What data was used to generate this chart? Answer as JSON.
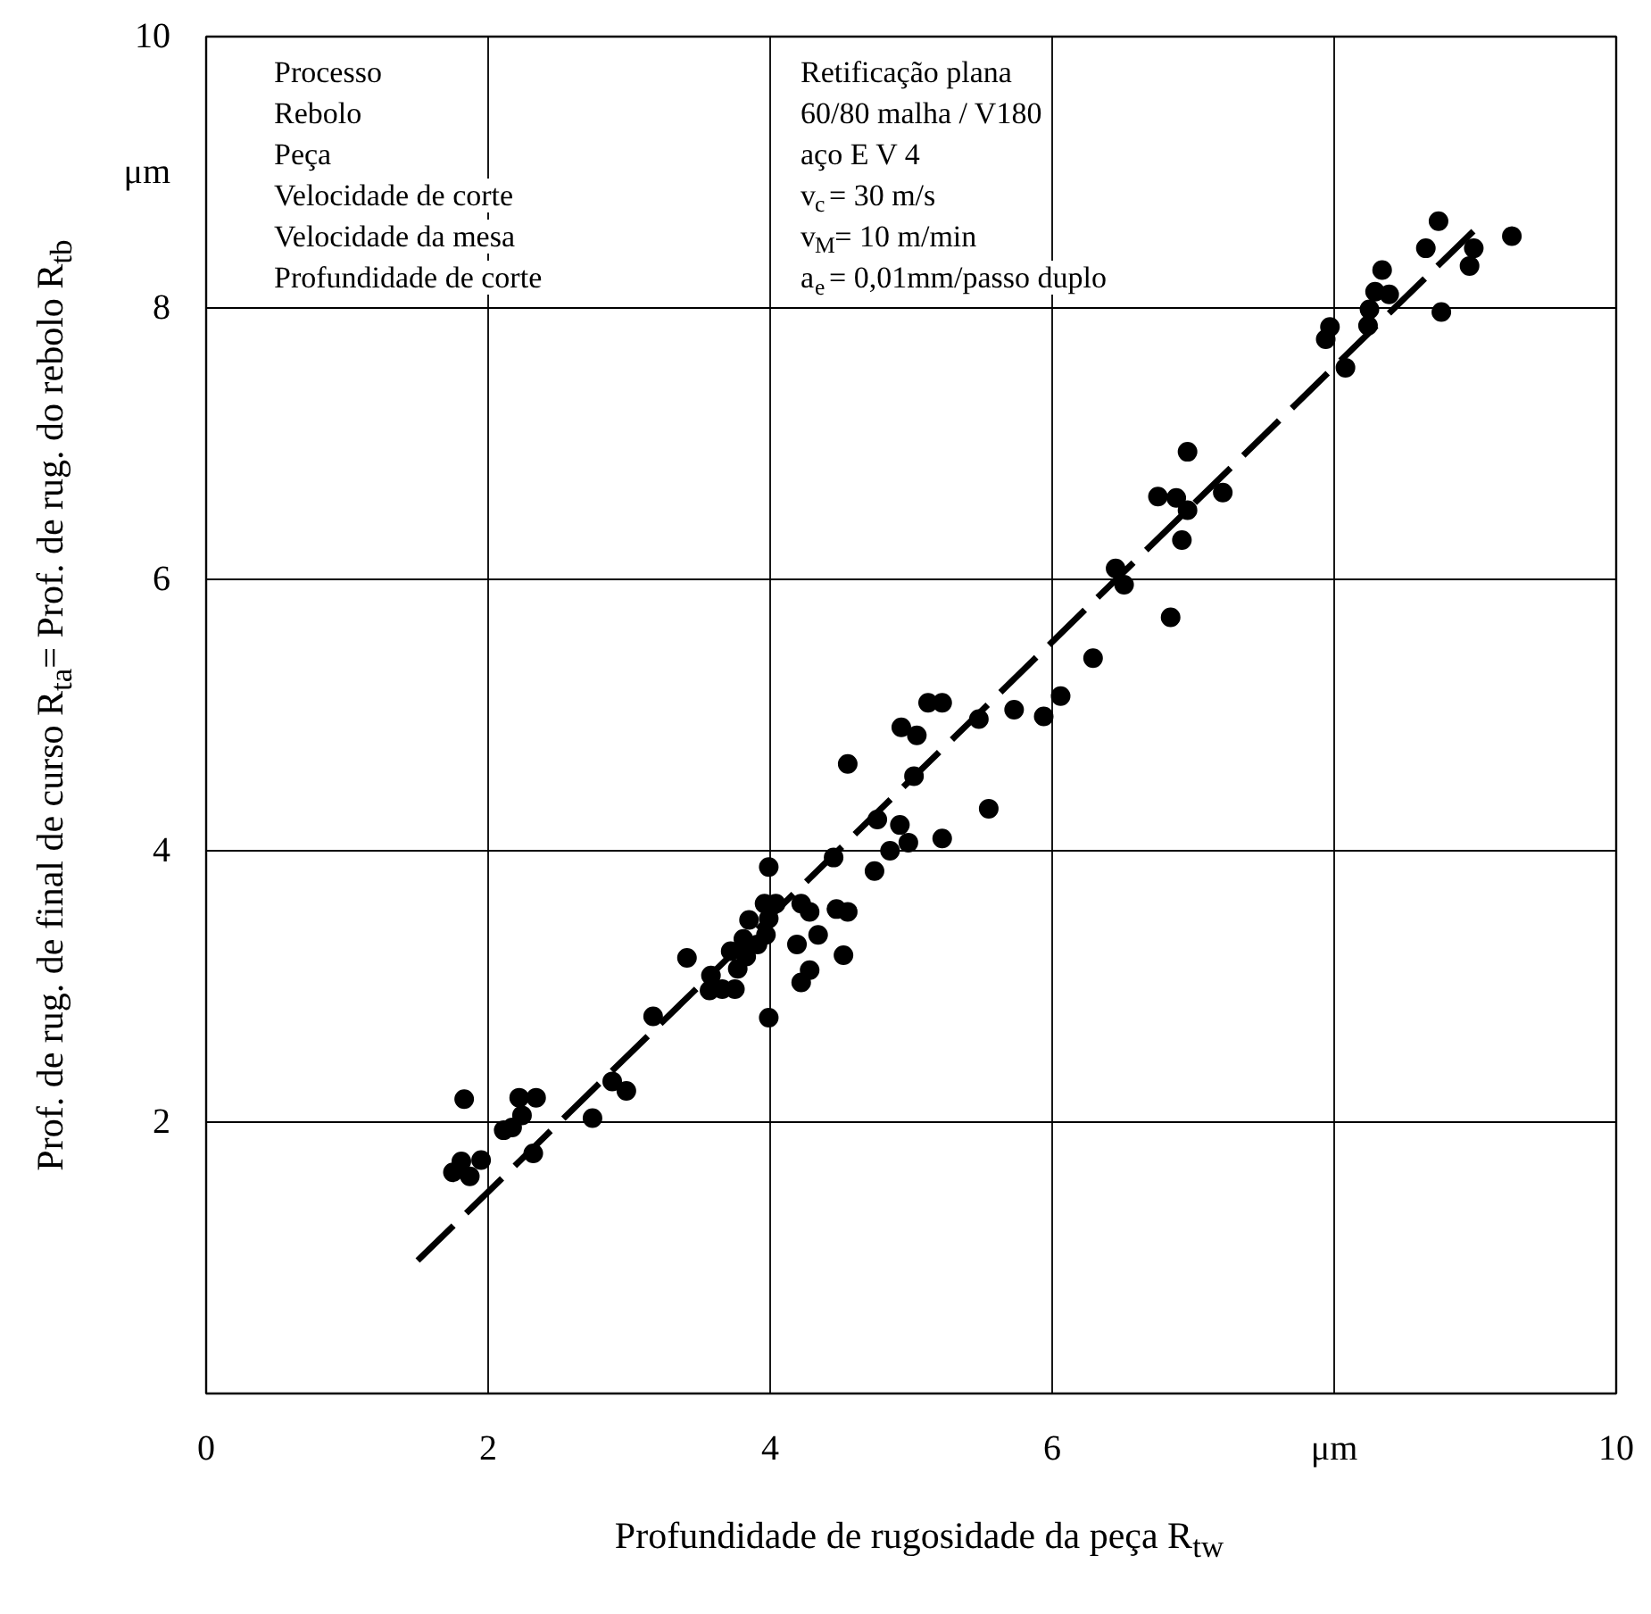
{
  "chart_data": {
    "type": "scatter",
    "xlabel": "Profundidade de rugosidade da peça R$_{tw}$",
    "ylabel": "Prof. de rug. de final de curso R$_{ta}$= Prof. de rug. do rebolo R$_{tb}$",
    "annotations": [
      "Processo",
      "Rebolo",
      "Peça",
      "Velocidade de corte",
      "Velocidade da mesa",
      "Profundidade de corte",
      "Retificação plana",
      "60/80 malha / V180",
      "aço E V 4",
      "v$_{c}$=  30 m/s",
      "v$_{M}$=  10 m/min",
      "a$_{e}$=  0,01mm/passo duplo"
    ],
    "xlim": [
      0,
      10
    ],
    "ylim": [
      0,
      10
    ],
    "xticks": [
      0,
      2,
      4,
      6,
      {
        "value": 8,
        "label": "μm"
      },
      10
    ],
    "yticks": [
      2,
      4,
      6,
      8,
      {
        "value": 9,
        "label": "μm"
      },
      10
    ],
    "grid": true,
    "marker": "circle",
    "series": [
      {
        "color": "#000000",
        "x": [
          1.83,
          1.75,
          1.81,
          1.87,
          1.95,
          2.11,
          2.17,
          2.24,
          2.22,
          2.34,
          2.32,
          2.74,
          2.88,
          2.98,
          3.17,
          3.41,
          3.58,
          3.57,
          3.66,
          3.75,
          3.77,
          3.72,
          3.83,
          3.81,
          3.85,
          3.91,
          3.97,
          3.96,
          4.04,
          3.99,
          3.99,
          3.99,
          4.19,
          4.22,
          4.28,
          4.34,
          4.28,
          4.22,
          4.45,
          4.47,
          4.55,
          4.52,
          4.74,
          4.85,
          4.92,
          4.98,
          4.76,
          5.22,
          4.55,
          5.02,
          4.93,
          5.04,
          5.12,
          5.22,
          5.48,
          5.55,
          5.73,
          5.94,
          6.06,
          6.29,
          6.45,
          6.51,
          6.84,
          6.92,
          6.96,
          6.88,
          6.75,
          6.96,
          7.21,
          7.94,
          7.97,
          8.08,
          8.24,
          8.25,
          8.29,
          8.39,
          8.34,
          8.76,
          8.65,
          8.74,
          8.96,
          8.99,
          9.26
        ],
        "values": [
          2.17,
          1.63,
          1.71,
          1.6,
          1.72,
          1.94,
          1.96,
          2.05,
          2.18,
          2.18,
          1.77,
          2.03,
          2.3,
          2.23,
          2.78,
          3.21,
          3.08,
          2.97,
          2.98,
          2.98,
          3.13,
          3.26,
          3.22,
          3.35,
          3.49,
          3.31,
          3.38,
          3.61,
          3.61,
          3.88,
          2.77,
          3.5,
          3.31,
          3.61,
          3.55,
          3.38,
          3.12,
          3.03,
          3.95,
          3.57,
          3.55,
          3.23,
          3.85,
          4.0,
          4.19,
          4.06,
          4.23,
          4.09,
          4.64,
          4.55,
          4.91,
          4.85,
          5.09,
          5.09,
          4.97,
          4.31,
          5.04,
          4.99,
          5.14,
          5.42,
          6.08,
          5.96,
          5.72,
          6.29,
          6.51,
          6.6,
          6.61,
          6.94,
          6.64,
          7.77,
          7.86,
          7.56,
          7.87,
          7.99,
          8.12,
          8.1,
          8.28,
          7.97,
          8.44,
          8.64,
          8.31,
          8.44,
          8.53
        ]
      },
      {
        "type": "line",
        "color": "#000000",
        "line_style": "dashed",
        "marker": "none",
        "x": [
          1.5,
          9.05
        ],
        "values": [
          0.98,
          8.63
        ]
      }
    ]
  }
}
